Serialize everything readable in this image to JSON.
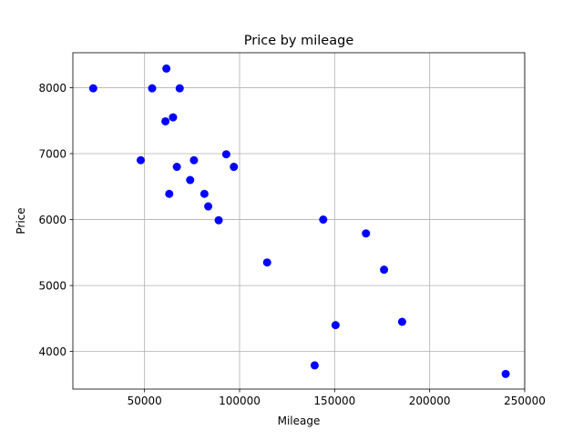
{
  "chart_data": {
    "type": "scatter",
    "title": "Price by mileage",
    "xlabel": "Mileage",
    "ylabel": "Price",
    "xlim": [
      12300,
      250000
    ],
    "ylim": [
      3430,
      8530
    ],
    "xticks": [
      50000,
      100000,
      150000,
      200000,
      250000
    ],
    "yticks": [
      4000,
      5000,
      6000,
      7000,
      8000
    ],
    "grid": true,
    "marker_color": "#0000ff",
    "series": [
      {
        "points": [
          {
            "x": 23000,
            "y": 7990
          },
          {
            "x": 48000,
            "y": 6900
          },
          {
            "x": 54000,
            "y": 7990
          },
          {
            "x": 61000,
            "y": 7490
          },
          {
            "x": 61500,
            "y": 8290
          },
          {
            "x": 63000,
            "y": 6390
          },
          {
            "x": 65000,
            "y": 7550
          },
          {
            "x": 67000,
            "y": 6800
          },
          {
            "x": 68500,
            "y": 7990
          },
          {
            "x": 74000,
            "y": 6600
          },
          {
            "x": 76000,
            "y": 6900
          },
          {
            "x": 81500,
            "y": 6390
          },
          {
            "x": 83500,
            "y": 6200
          },
          {
            "x": 89000,
            "y": 5990
          },
          {
            "x": 93000,
            "y": 6990
          },
          {
            "x": 97000,
            "y": 6800
          },
          {
            "x": 114500,
            "y": 5350
          },
          {
            "x": 139500,
            "y": 3790
          },
          {
            "x": 144000,
            "y": 6000
          },
          {
            "x": 150500,
            "y": 4400
          },
          {
            "x": 166500,
            "y": 5790
          },
          {
            "x": 176000,
            "y": 5240
          },
          {
            "x": 185500,
            "y": 4450
          },
          {
            "x": 240000,
            "y": 3660
          }
        ]
      }
    ]
  }
}
